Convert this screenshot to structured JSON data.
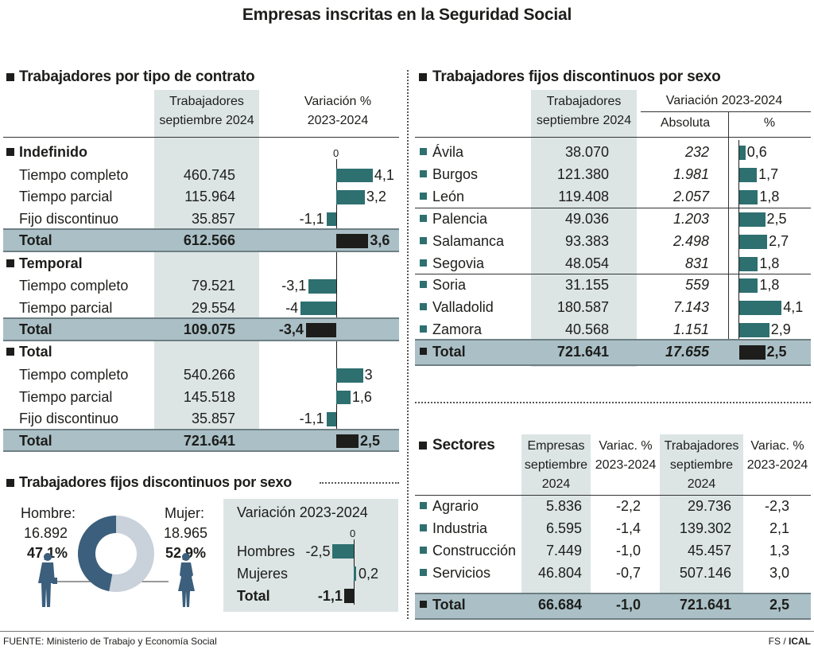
{
  "title": "Empresas inscritas en la Seguridad Social",
  "contrato": {
    "title": "Trabajadores por tipo de contrato",
    "col_workers": "Trabajadores septiembre 2024",
    "col_var": "Variación % 2023-2024",
    "zero_label": "0",
    "groups": [
      {
        "name": "Indefinido",
        "rows": [
          {
            "label": "Tiempo completo",
            "workers": "460.745",
            "var": 4.1,
            "var_label": "4,1"
          },
          {
            "label": "Tiempo parcial",
            "workers": "115.964",
            "var": 3.2,
            "var_label": "3,2"
          },
          {
            "label": "Fijo discontinuo",
            "workers": "35.857",
            "var": -1.1,
            "var_label": "-1,1"
          }
        ],
        "total": {
          "label": "Total",
          "workers": "612.566",
          "var": 3.6,
          "var_label": "3,6"
        }
      },
      {
        "name": "Temporal",
        "rows": [
          {
            "label": "Tiempo completo",
            "workers": "79.521",
            "var": -3.1,
            "var_label": "-3,1"
          },
          {
            "label": "Tiempo parcial",
            "workers": "29.554",
            "var": -4,
            "var_label": "-4"
          }
        ],
        "total": {
          "label": "Total",
          "workers": "109.075",
          "var": -3.4,
          "var_label": "-3,4"
        }
      },
      {
        "name": "Total",
        "rows": [
          {
            "label": "Tiempo completo",
            "workers": "540.266",
            "var": 3,
            "var_label": "3"
          },
          {
            "label": "Tiempo parcial",
            "workers": "145.518",
            "var": 1.6,
            "var_label": "1,6"
          },
          {
            "label": "Fijo discontinuo",
            "workers": "35.857",
            "var": -1.1,
            "var_label": "-1,1"
          }
        ],
        "total": {
          "label": "Total",
          "workers": "721.641",
          "var": 2.5,
          "var_label": "2,5"
        }
      }
    ]
  },
  "sexo": {
    "title": "Trabajadores fijos discontinuos por sexo",
    "hombre_label": "Hombre:",
    "hombre_value": "16.892",
    "hombre_pct": "47,1%",
    "hombre_share": 47.1,
    "mujer_label": "Mujer:",
    "mujer_value": "18.965",
    "mujer_pct": "52,9%",
    "mujer_share": 52.9,
    "var_title": "Variación 2023-2024",
    "zero_label": "0",
    "rows": [
      {
        "label": "Hombres",
        "var": -2.5,
        "var_label": "-2,5"
      },
      {
        "label": "Mujeres",
        "var": 0.2,
        "var_label": "0,2"
      },
      {
        "label": "Total",
        "var": -1.1,
        "var_label": "-1,1"
      }
    ],
    "colors": {
      "hombre": "#3b5f7c",
      "mujer": "#c9d1da"
    }
  },
  "provincias": {
    "title": "Trabajadores fijos discontinuos por sexo",
    "col_workers": "Trabajadores septiembre 2024",
    "col_var": "Variación 2023-2024",
    "col_abs": "Absoluta",
    "col_pct": "%",
    "rows": [
      {
        "name": "Ávila",
        "workers": "38.070",
        "abs": "232",
        "pct": 0.6,
        "pct_label": "0,6"
      },
      {
        "name": "Burgos",
        "workers": "121.380",
        "abs": "1.981",
        "pct": 1.7,
        "pct_label": "1,7"
      },
      {
        "name": "León",
        "workers": "119.408",
        "abs": "2.057",
        "pct": 1.8,
        "pct_label": "1,8"
      },
      {
        "name": "Palencia",
        "workers": "49.036",
        "abs": "1.203",
        "pct": 2.5,
        "pct_label": "2,5"
      },
      {
        "name": "Salamanca",
        "workers": "93.383",
        "abs": "2.498",
        "pct": 2.7,
        "pct_label": "2,7"
      },
      {
        "name": "Segovia",
        "workers": "48.054",
        "abs": "831",
        "pct": 1.8,
        "pct_label": "1,8"
      },
      {
        "name": "Soria",
        "workers": "31.155",
        "abs": "559",
        "pct": 1.8,
        "pct_label": "1,8"
      },
      {
        "name": "Valladolid",
        "workers": "180.587",
        "abs": "7.143",
        "pct": 4.1,
        "pct_label": "4,1"
      },
      {
        "name": "Zamora",
        "workers": "40.568",
        "abs": "1.151",
        "pct": 2.9,
        "pct_label": "2,9"
      }
    ],
    "total": {
      "name": "Total",
      "workers": "721.641",
      "abs": "17.655",
      "pct": 2.5,
      "pct_label": "2,5"
    }
  },
  "sectores": {
    "title": "Sectores",
    "col_empresas": "Empresas septiembre 2024",
    "col_var_emp": "Variac. % 2023-2024",
    "col_trab": "Trabajadores septiembre 2024",
    "col_var_trab": "Variac. % 2023-2024",
    "rows": [
      {
        "name": "Agrario",
        "empresas": "5.836",
        "var_emp": "-2,2",
        "trab": "29.736",
        "var_trab": "-2,3"
      },
      {
        "name": "Industria",
        "empresas": "6.595",
        "var_emp": "-1,4",
        "trab": "139.302",
        "var_trab": "2,1"
      },
      {
        "name": "Construcción",
        "empresas": "7.449",
        "var_emp": "-1,0",
        "trab": "45.457",
        "var_trab": "1,3"
      },
      {
        "name": "Servicios",
        "empresas": "46.804",
        "var_emp": "-0,7",
        "trab": "507.146",
        "var_trab": "3,0"
      }
    ],
    "total": {
      "name": "Total",
      "empresas": "66.684",
      "var_emp": "-1,0",
      "trab": "721.641",
      "var_trab": "2,5"
    }
  },
  "footer": {
    "source": "FUENTE: Ministerio de Trabajo y Economía Social",
    "credit_a": "FS / ",
    "credit_b": "ICAL"
  },
  "colors": {
    "bar": "#2e6f70",
    "bar_total": "#1d1d1b",
    "shade": "#dce5e4",
    "total_band": "#aac0c6"
  },
  "chart_data": [
    {
      "type": "bar",
      "title": "Trabajadores por tipo de contrato",
      "categories": [
        "Indefinido: Tiempo completo",
        "Indefinido: Tiempo parcial",
        "Indefinido: Fijo discontinuo",
        "Indefinido: Total",
        "Temporal: Tiempo completo",
        "Temporal: Tiempo parcial",
        "Temporal: Total",
        "Total: Tiempo completo",
        "Total: Tiempo parcial",
        "Total: Fijo discontinuo",
        "Total: Total"
      ],
      "series": [
        {
          "name": "Trabajadores septiembre 2024",
          "values": [
            460745,
            115964,
            35857,
            612566,
            79521,
            29554,
            109075,
            540266,
            145518,
            35857,
            721641
          ]
        },
        {
          "name": "Variación % 2023-2024",
          "values": [
            4.1,
            3.2,
            -1.1,
            3.6,
            -3.1,
            -4,
            -3.4,
            3,
            1.6,
            -1.1,
            2.5
          ]
        }
      ]
    },
    {
      "type": "pie",
      "title": "Trabajadores fijos discontinuos por sexo",
      "categories": [
        "Hombre",
        "Mujer"
      ],
      "values": [
        16892,
        18965
      ],
      "percent": [
        47.1,
        52.9
      ]
    },
    {
      "type": "bar",
      "title": "Variación 2023-2024",
      "categories": [
        "Hombres",
        "Mujeres",
        "Total"
      ],
      "values": [
        -2.5,
        0.2,
        -1.1
      ]
    },
    {
      "type": "bar",
      "title": "Trabajadores fijos discontinuos por sexo",
      "categories": [
        "Ávila",
        "Burgos",
        "León",
        "Palencia",
        "Salamanca",
        "Segovia",
        "Soria",
        "Valladolid",
        "Zamora",
        "Total"
      ],
      "series": [
        {
          "name": "Trabajadores septiembre 2024",
          "values": [
            38070,
            121380,
            119408,
            49036,
            93383,
            48054,
            31155,
            180587,
            40568,
            721641
          ]
        },
        {
          "name": "Absoluta",
          "values": [
            232,
            1981,
            2057,
            1203,
            2498,
            831,
            559,
            7143,
            1151,
            17655
          ]
        },
        {
          "name": "%",
          "values": [
            0.6,
            1.7,
            1.8,
            2.5,
            2.7,
            1.8,
            1.8,
            4.1,
            2.9,
            2.5
          ]
        }
      ]
    },
    {
      "type": "table",
      "title": "Sectores",
      "categories": [
        "Agrario",
        "Industria",
        "Construcción",
        "Servicios",
        "Total"
      ],
      "series": [
        {
          "name": "Empresas septiembre 2024",
          "values": [
            5836,
            6595,
            7449,
            46804,
            66684
          ]
        },
        {
          "name": "Variac. % 2023-2024",
          "values": [
            -2.2,
            -1.4,
            -1.0,
            -0.7,
            -1.0
          ]
        },
        {
          "name": "Trabajadores septiembre 2024",
          "values": [
            29736,
            139302,
            45457,
            507146,
            721641
          ]
        },
        {
          "name": "Variac. % 2023-2024",
          "values": [
            -2.3,
            2.1,
            1.3,
            3.0,
            2.5
          ]
        }
      ]
    }
  ]
}
